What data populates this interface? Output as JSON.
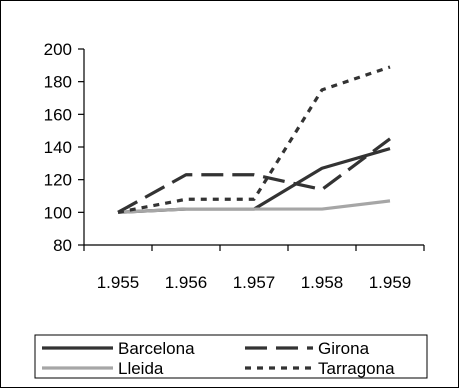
{
  "chart_data": {
    "type": "line",
    "title": "",
    "xlabel": "",
    "ylabel": "",
    "categories": [
      "1.955",
      "1.956",
      "1.957",
      "1.958",
      "1.959"
    ],
    "ylim": [
      80,
      200
    ],
    "yticks": [
      80,
      100,
      120,
      140,
      160,
      180,
      200
    ],
    "grid": false,
    "legend_position": "bottom",
    "series": [
      {
        "name": "Barcelona",
        "values": [
          100,
          102,
          102,
          127,
          139
        ],
        "color": "#333333",
        "dash": "solid"
      },
      {
        "name": "Girona",
        "values": [
          100,
          123,
          123,
          114,
          145
        ],
        "color": "#333333",
        "dash": "long-dash"
      },
      {
        "name": "Lleida",
        "values": [
          100,
          102,
          102,
          102,
          107
        ],
        "color": "#a6a6a6",
        "dash": "solid"
      },
      {
        "name": "Tarragona",
        "values": [
          100,
          108,
          108,
          175,
          189
        ],
        "color": "#333333",
        "dash": "short-dash"
      }
    ]
  }
}
